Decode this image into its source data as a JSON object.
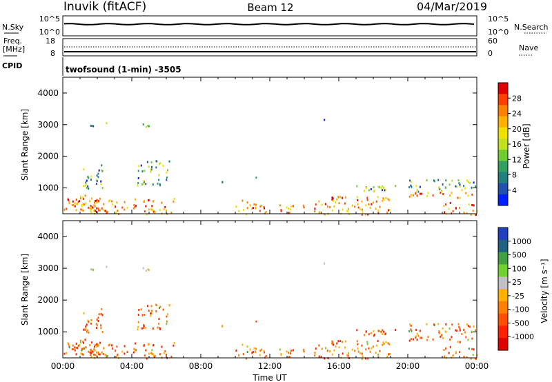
{
  "header": {
    "station": "Inuvik (fitACF)",
    "beam": "Beam 12",
    "date": "04/Mar/2019"
  },
  "strip_panels": {
    "nsky": {
      "label": "N.Sky",
      "tick_top": "10^5",
      "tick_bottom": "10^0"
    },
    "nsearch": {
      "label": "N.Search",
      "tick_top": "10^5",
      "tick_bottom": "10^0"
    },
    "freq": {
      "label_line1": "Freq.",
      "label_line2": "[MHz]",
      "tick_top": "18",
      "tick_bottom": "8"
    },
    "nave": {
      "label": "Nave",
      "tick_top": "60",
      "tick_bottom": "0"
    },
    "cpid_label": "CPID",
    "cpid_value": "twofsound (1-min) -3505"
  },
  "chart_data": [
    {
      "type": "heatmap",
      "name": "power",
      "ylabel": "Slant Range [km]",
      "xlabel": "",
      "colorbar_label": "Power [dB]",
      "colorbar_ticks": [
        "28",
        "24",
        "20",
        "16",
        "12",
        "8",
        "4"
      ],
      "colorbar_colors": [
        "#e00000",
        "#ff4000",
        "#ff8000",
        "#ffb000",
        "#f0e000",
        "#c0e020",
        "#70cc30",
        "#30a060",
        "#208080",
        "#2050b0",
        "#0020ff"
      ],
      "ylim": [
        180,
        4500
      ],
      "yticks": [
        "4000",
        "3000",
        "2000",
        "1000"
      ],
      "xticks": [
        "00:00",
        "04:00",
        "08:00",
        "12:00",
        "16:00",
        "20:00",
        "00:00"
      ]
    },
    {
      "type": "heatmap",
      "name": "velocity",
      "ylabel": "Slant Range [km]",
      "xlabel": "Time UT",
      "colorbar_label": "Velocity  [m s⁻¹]",
      "colorbar_ticks": [
        "1000",
        "500",
        "100",
        "25",
        "-25",
        "-100",
        "-500",
        "-1000"
      ],
      "colorbar_colors": [
        "#2040c0",
        "#206080",
        "#40a040",
        "#70d030",
        "#c0c0c0",
        "#ffb000",
        "#ff8000",
        "#ff5000",
        "#ff2000",
        "#e00000"
      ],
      "ylim": [
        180,
        4500
      ],
      "yticks": [
        "4000",
        "3000",
        "2000",
        "1000"
      ],
      "xticks": [
        "00:00",
        "04:00",
        "08:00",
        "12:00",
        "16:00",
        "20:00",
        "00:00"
      ]
    }
  ]
}
